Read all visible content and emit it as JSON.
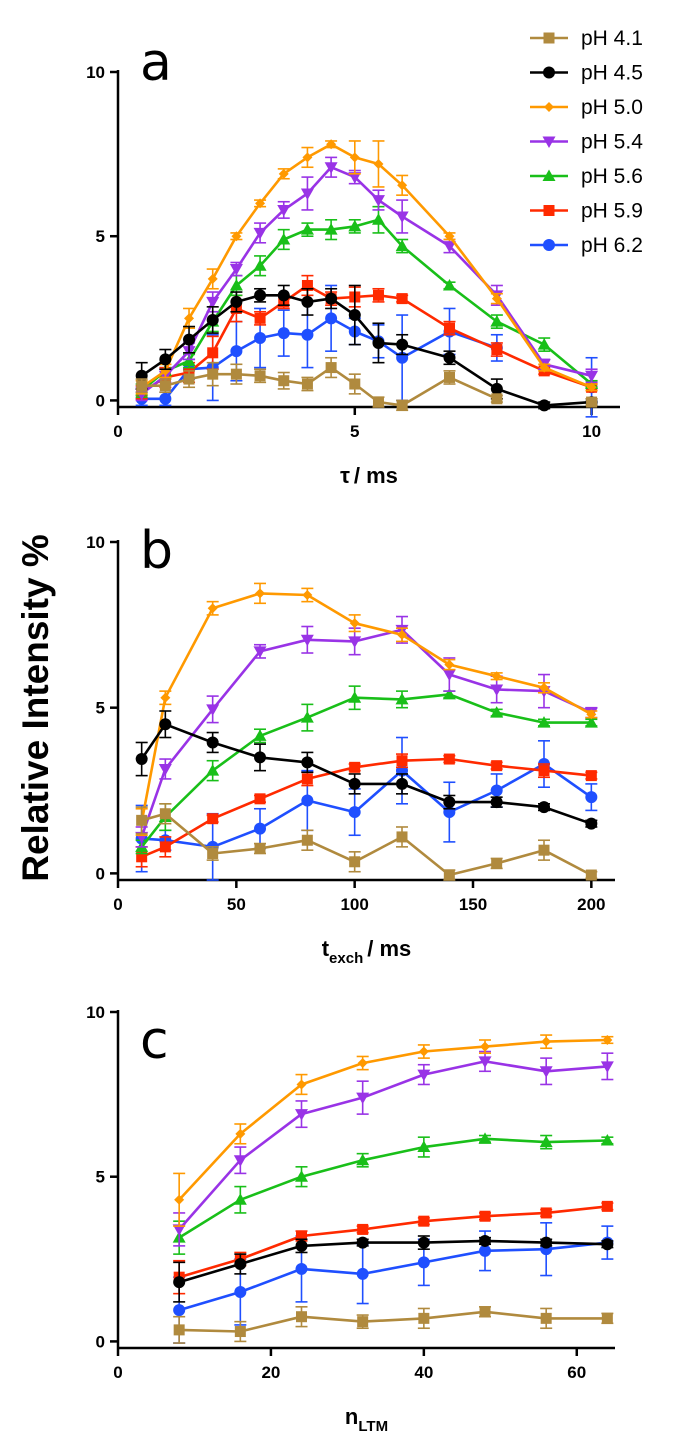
{
  "figure": {
    "ylabel": "Relative Intensity %",
    "legend": {
      "placement": "top-right",
      "entries": [
        "pH 4.1",
        "pH 4.5",
        "pH 5.0",
        "pH 5.4",
        "pH 5.6",
        "pH 5.9",
        "pH 6.2"
      ]
    },
    "series_styles": [
      {
        "name": "pH 4.1",
        "color": "#B08A3E",
        "marker": "square"
      },
      {
        "name": "pH 4.5",
        "color": "#000000",
        "marker": "circle"
      },
      {
        "name": "pH 5.0",
        "color": "#FF9900",
        "marker": "diamond"
      },
      {
        "name": "pH 5.4",
        "color": "#9933E6",
        "marker": "triangle-down"
      },
      {
        "name": "pH 5.6",
        "color": "#19BF19",
        "marker": "triangle-up"
      },
      {
        "name": "pH 5.9",
        "color": "#FF2A00",
        "marker": "square"
      },
      {
        "name": "pH 6.2",
        "color": "#1F4FFF",
        "marker": "circle"
      }
    ]
  },
  "chart_data": [
    {
      "type": "line",
      "panel_label": "a",
      "xlabel_main": "τ",
      "xlabel_sub": "",
      "xlabel_unit": "/ ms",
      "xlim": [
        0,
        10.6
      ],
      "ylim": [
        -0.2,
        10
      ],
      "xticks": [
        0,
        5,
        10
      ],
      "yticks": [
        0,
        5,
        10
      ],
      "x": [
        0.5,
        1,
        1.5,
        2,
        2.5,
        3,
        3.5,
        4,
        4.5,
        5,
        5.5,
        6,
        7,
        8,
        9,
        10
      ],
      "series": [
        {
          "name": "pH 4.1",
          "values": [
            0.45,
            0.45,
            0.65,
            0.8,
            0.8,
            0.75,
            0.6,
            0.5,
            1.0,
            0.5,
            -0.05,
            -0.15,
            0.7,
            0.05,
            null,
            -0.05
          ],
          "errors": [
            0.2,
            0.2,
            0.25,
            0.35,
            0.3,
            0.2,
            0.25,
            0.2,
            0.3,
            0.3,
            0.15,
            0.15,
            0.2,
            0.1,
            0,
            0.1
          ]
        },
        {
          "name": "pH 4.5",
          "values": [
            0.75,
            1.25,
            1.85,
            2.45,
            3.0,
            3.2,
            3.2,
            3.0,
            3.1,
            2.6,
            1.75,
            1.7,
            1.3,
            0.35,
            -0.15,
            -0.05
          ],
          "errors": [
            0.4,
            0.3,
            0.4,
            0.4,
            0.3,
            0.2,
            0.3,
            0.4,
            0.3,
            0.9,
            0.6,
            0.3,
            0.2,
            0.3,
            0.1,
            0.1
          ]
        },
        {
          "name": "pH 5.0",
          "values": [
            0.4,
            0.9,
            2.5,
            3.7,
            5.0,
            6.0,
            6.9,
            7.4,
            7.8,
            7.4,
            7.2,
            6.55,
            5.0,
            3.1,
            1.0,
            0.4
          ],
          "errors": [
            0.2,
            0.2,
            0.3,
            0.3,
            0.1,
            0.1,
            0.15,
            0.3,
            0.1,
            0.5,
            0.7,
            0.3,
            0.1,
            0.15,
            0.1,
            0.1
          ]
        },
        {
          "name": "pH 5.4",
          "values": [
            0.2,
            0.75,
            1.5,
            3.0,
            4.0,
            5.1,
            5.8,
            6.3,
            7.1,
            6.8,
            6.1,
            5.6,
            4.7,
            3.2,
            1.1,
            0.75
          ],
          "errors": [
            0.2,
            0.2,
            0.25,
            0.3,
            0.2,
            0.3,
            0.25,
            0.5,
            0.3,
            0.2,
            0.3,
            0.5,
            0.2,
            0.3,
            0.15,
            0.2
          ]
        },
        {
          "name": "pH 5.6",
          "values": [
            0.3,
            0.9,
            1.2,
            2.4,
            3.5,
            4.1,
            4.9,
            5.2,
            5.2,
            5.3,
            5.5,
            4.7,
            3.5,
            2.4,
            1.7,
            0.5
          ],
          "errors": [
            0.2,
            0.2,
            0.2,
            0.3,
            0.3,
            0.3,
            0.3,
            0.2,
            0.3,
            0.2,
            0.4,
            0.2,
            0.1,
            0.2,
            0.2,
            0.1
          ]
        },
        {
          "name": "pH 5.9",
          "values": [
            0.25,
            0.7,
            0.85,
            1.45,
            2.8,
            2.5,
            3.0,
            3.5,
            3.1,
            3.15,
            3.2,
            3.1,
            2.2,
            1.55,
            0.9,
            0.4
          ],
          "errors": [
            0.2,
            0.3,
            0.3,
            0.5,
            0.4,
            0.2,
            0.2,
            0.3,
            0.2,
            0.3,
            0.2,
            0.1,
            0.2,
            0.2,
            0.1,
            0.1
          ]
        },
        {
          "name": "pH 6.2",
          "values": [
            0.05,
            0.05,
            0.95,
            1.0,
            1.5,
            1.9,
            2.05,
            2.0,
            2.5,
            2.1,
            1.8,
            1.3,
            2.1,
            1.6,
            null,
            0.4
          ],
          "errors": [
            0.2,
            0.2,
            0.3,
            1.0,
            0.9,
            0.9,
            0.7,
            1.0,
            1.0,
            0.4,
            0.5,
            1.3,
            0.7,
            0.4,
            0,
            0.9
          ]
        }
      ]
    },
    {
      "type": "line",
      "panel_label": "b",
      "xlabel_main": "t",
      "xlabel_sub": "exch",
      "xlabel_unit": "/ ms",
      "xlim": [
        0,
        210
      ],
      "ylim": [
        -0.2,
        10
      ],
      "xticks": [
        0,
        50,
        100,
        150,
        200
      ],
      "yticks": [
        0,
        5,
        10
      ],
      "x": [
        10,
        20,
        40,
        60,
        80,
        100,
        120,
        140,
        160,
        180,
        200
      ],
      "series": [
        {
          "name": "pH 4.1",
          "values": [
            1.6,
            1.8,
            0.6,
            0.75,
            1.0,
            0.35,
            1.1,
            -0.05,
            0.3,
            0.7,
            -0.05
          ],
          "errors": [
            0.4,
            0.3,
            0.2,
            0.15,
            0.3,
            0.3,
            0.3,
            0.15,
            0.15,
            0.3,
            0.1
          ]
        },
        {
          "name": "pH 4.5",
          "values": [
            3.45,
            4.5,
            3.95,
            3.5,
            3.35,
            2.7,
            2.7,
            2.15,
            2.15,
            2.0,
            1.5
          ],
          "errors": [
            0.5,
            0.4,
            0.3,
            0.4,
            0.3,
            0.3,
            0.3,
            0.2,
            0.15,
            0.1,
            0.1
          ]
        },
        {
          "name": "pH 5.0",
          "values": [
            1.55,
            5.3,
            8.0,
            8.45,
            8.4,
            7.55,
            7.2,
            6.3,
            5.95,
            5.6,
            4.8
          ],
          "errors": [
            0.4,
            0.2,
            0.2,
            0.3,
            0.2,
            0.25,
            0.2,
            0.15,
            0.1,
            0.15,
            0.1
          ]
        },
        {
          "name": "pH 5.4",
          "values": [
            1.1,
            3.15,
            4.95,
            6.7,
            7.05,
            7.0,
            7.35,
            6.0,
            5.55,
            5.5,
            4.85
          ],
          "errors": [
            0.3,
            0.3,
            0.4,
            0.2,
            0.4,
            0.4,
            0.4,
            0.5,
            0.4,
            0.5,
            0.15
          ]
        },
        {
          "name": "pH 5.6",
          "values": [
            0.8,
            1.7,
            3.1,
            4.15,
            4.7,
            5.3,
            5.25,
            5.4,
            4.85,
            4.55,
            4.55
          ],
          "errors": [
            0.2,
            0.4,
            0.3,
            0.2,
            0.4,
            0.35,
            0.25,
            0.1,
            0.1,
            0.1,
            0.1
          ]
        },
        {
          "name": "pH 5.9",
          "values": [
            0.5,
            0.8,
            1.65,
            2.25,
            2.85,
            3.2,
            3.4,
            3.45,
            3.25,
            3.1,
            2.95
          ],
          "errors": [
            0.3,
            0.3,
            0.1,
            0.1,
            0.2,
            0.1,
            0.2,
            0.1,
            0.1,
            0.2,
            0.1
          ]
        },
        {
          "name": "pH 6.2",
          "values": [
            1.05,
            1.0,
            0.8,
            1.35,
            2.2,
            1.85,
            3.1,
            1.85,
            2.5,
            3.3,
            2.3
          ],
          "errors": [
            1.0,
            0.3,
            1.0,
            0.6,
            0.9,
            0.7,
            1.0,
            0.9,
            0.5,
            0.7,
            0.4
          ]
        }
      ]
    },
    {
      "type": "line",
      "panel_label": "c",
      "xlabel_main": "n",
      "xlabel_sub": "LTM",
      "xlabel_unit": "",
      "xlim": [
        0,
        65
      ],
      "ylim": [
        -0.2,
        10
      ],
      "xticks": [
        0,
        20,
        40,
        60
      ],
      "yticks": [
        0,
        5,
        10
      ],
      "x": [
        8,
        16,
        24,
        32,
        40,
        48,
        56,
        64
      ],
      "series": [
        {
          "name": "pH 4.1",
          "values": [
            0.35,
            0.3,
            0.75,
            0.6,
            0.7,
            0.9,
            0.7,
            0.7
          ],
          "errors": [
            0.4,
            0.3,
            0.3,
            0.2,
            0.3,
            0.15,
            0.3,
            0.15
          ]
        },
        {
          "name": "pH 4.5",
          "values": [
            1.8,
            2.35,
            2.9,
            3.0,
            3.0,
            3.05,
            3.0,
            2.95
          ],
          "errors": [
            0.6,
            0.3,
            0.2,
            0.1,
            0.2,
            0.1,
            0.1,
            0.1
          ]
        },
        {
          "name": "pH 5.0",
          "values": [
            4.3,
            6.3,
            7.8,
            8.45,
            8.8,
            8.95,
            9.1,
            9.15
          ],
          "errors": [
            0.8,
            0.3,
            0.3,
            0.2,
            0.2,
            0.2,
            0.2,
            0.1
          ]
        },
        {
          "name": "pH 5.4",
          "values": [
            3.4,
            5.5,
            6.9,
            7.4,
            8.1,
            8.5,
            8.2,
            8.35
          ],
          "errors": [
            0.5,
            0.4,
            0.4,
            0.5,
            0.3,
            0.3,
            0.4,
            0.4
          ]
        },
        {
          "name": "pH 5.6",
          "values": [
            3.15,
            4.3,
            5.0,
            5.5,
            5.9,
            6.15,
            6.05,
            6.1
          ],
          "errors": [
            0.5,
            0.4,
            0.3,
            0.2,
            0.3,
            0.1,
            0.2,
            0.1
          ]
        },
        {
          "name": "pH 5.9",
          "values": [
            1.95,
            2.5,
            3.2,
            3.4,
            3.65,
            3.8,
            3.9,
            4.1
          ],
          "errors": [
            0.5,
            0.2,
            0.15,
            0.1,
            0.1,
            0.1,
            0.1,
            0.1
          ]
        },
        {
          "name": "pH 6.2",
          "values": [
            0.95,
            1.5,
            2.2,
            2.05,
            2.4,
            2.75,
            2.8,
            3.0
          ],
          "errors": [
            1.0,
            1.0,
            1.0,
            0.9,
            0.7,
            0.6,
            0.8,
            0.5
          ]
        }
      ]
    }
  ]
}
